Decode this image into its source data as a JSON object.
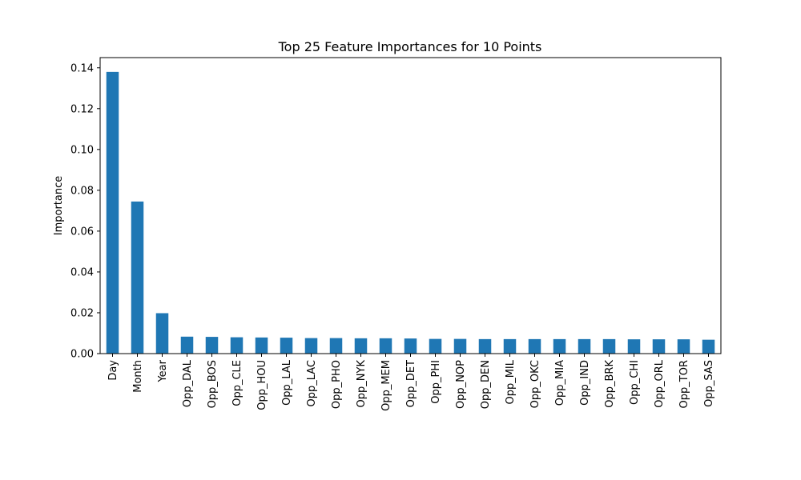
{
  "chart_data": {
    "type": "bar",
    "title": "Top 25 Feature Importances for 10 Points",
    "xlabel": "",
    "ylabel": "Importance",
    "ylim": [
      0,
      0.145
    ],
    "yticks": [
      "0.00",
      "0.02",
      "0.04",
      "0.06",
      "0.08",
      "0.10",
      "0.12",
      "0.14"
    ],
    "categories": [
      "Day",
      "Month",
      "Year",
      "Opp_DAL",
      "Opp_BOS",
      "Opp_CLE",
      "Opp_HOU",
      "Opp_LAL",
      "Opp_LAC",
      "Opp_PHO",
      "Opp_NYK",
      "Opp_MEM",
      "Opp_DET",
      "Opp_PHI",
      "Opp_NOP",
      "Opp_DEN",
      "Opp_MIL",
      "Opp_OKC",
      "Opp_MIA",
      "Opp_IND",
      "Opp_BRK",
      "Opp_CHI",
      "Opp_ORL",
      "Opp_TOR",
      "Opp_SAS"
    ],
    "values": [
      0.138,
      0.0745,
      0.0198,
      0.0083,
      0.0082,
      0.008,
      0.0079,
      0.0078,
      0.0076,
      0.0076,
      0.0075,
      0.0075,
      0.0074,
      0.0072,
      0.0072,
      0.0071,
      0.0071,
      0.0071,
      0.0071,
      0.0071,
      0.0071,
      0.007,
      0.007,
      0.007,
      0.0068
    ],
    "bar_color": "#1f77b4",
    "grid": false,
    "legend": "none"
  }
}
